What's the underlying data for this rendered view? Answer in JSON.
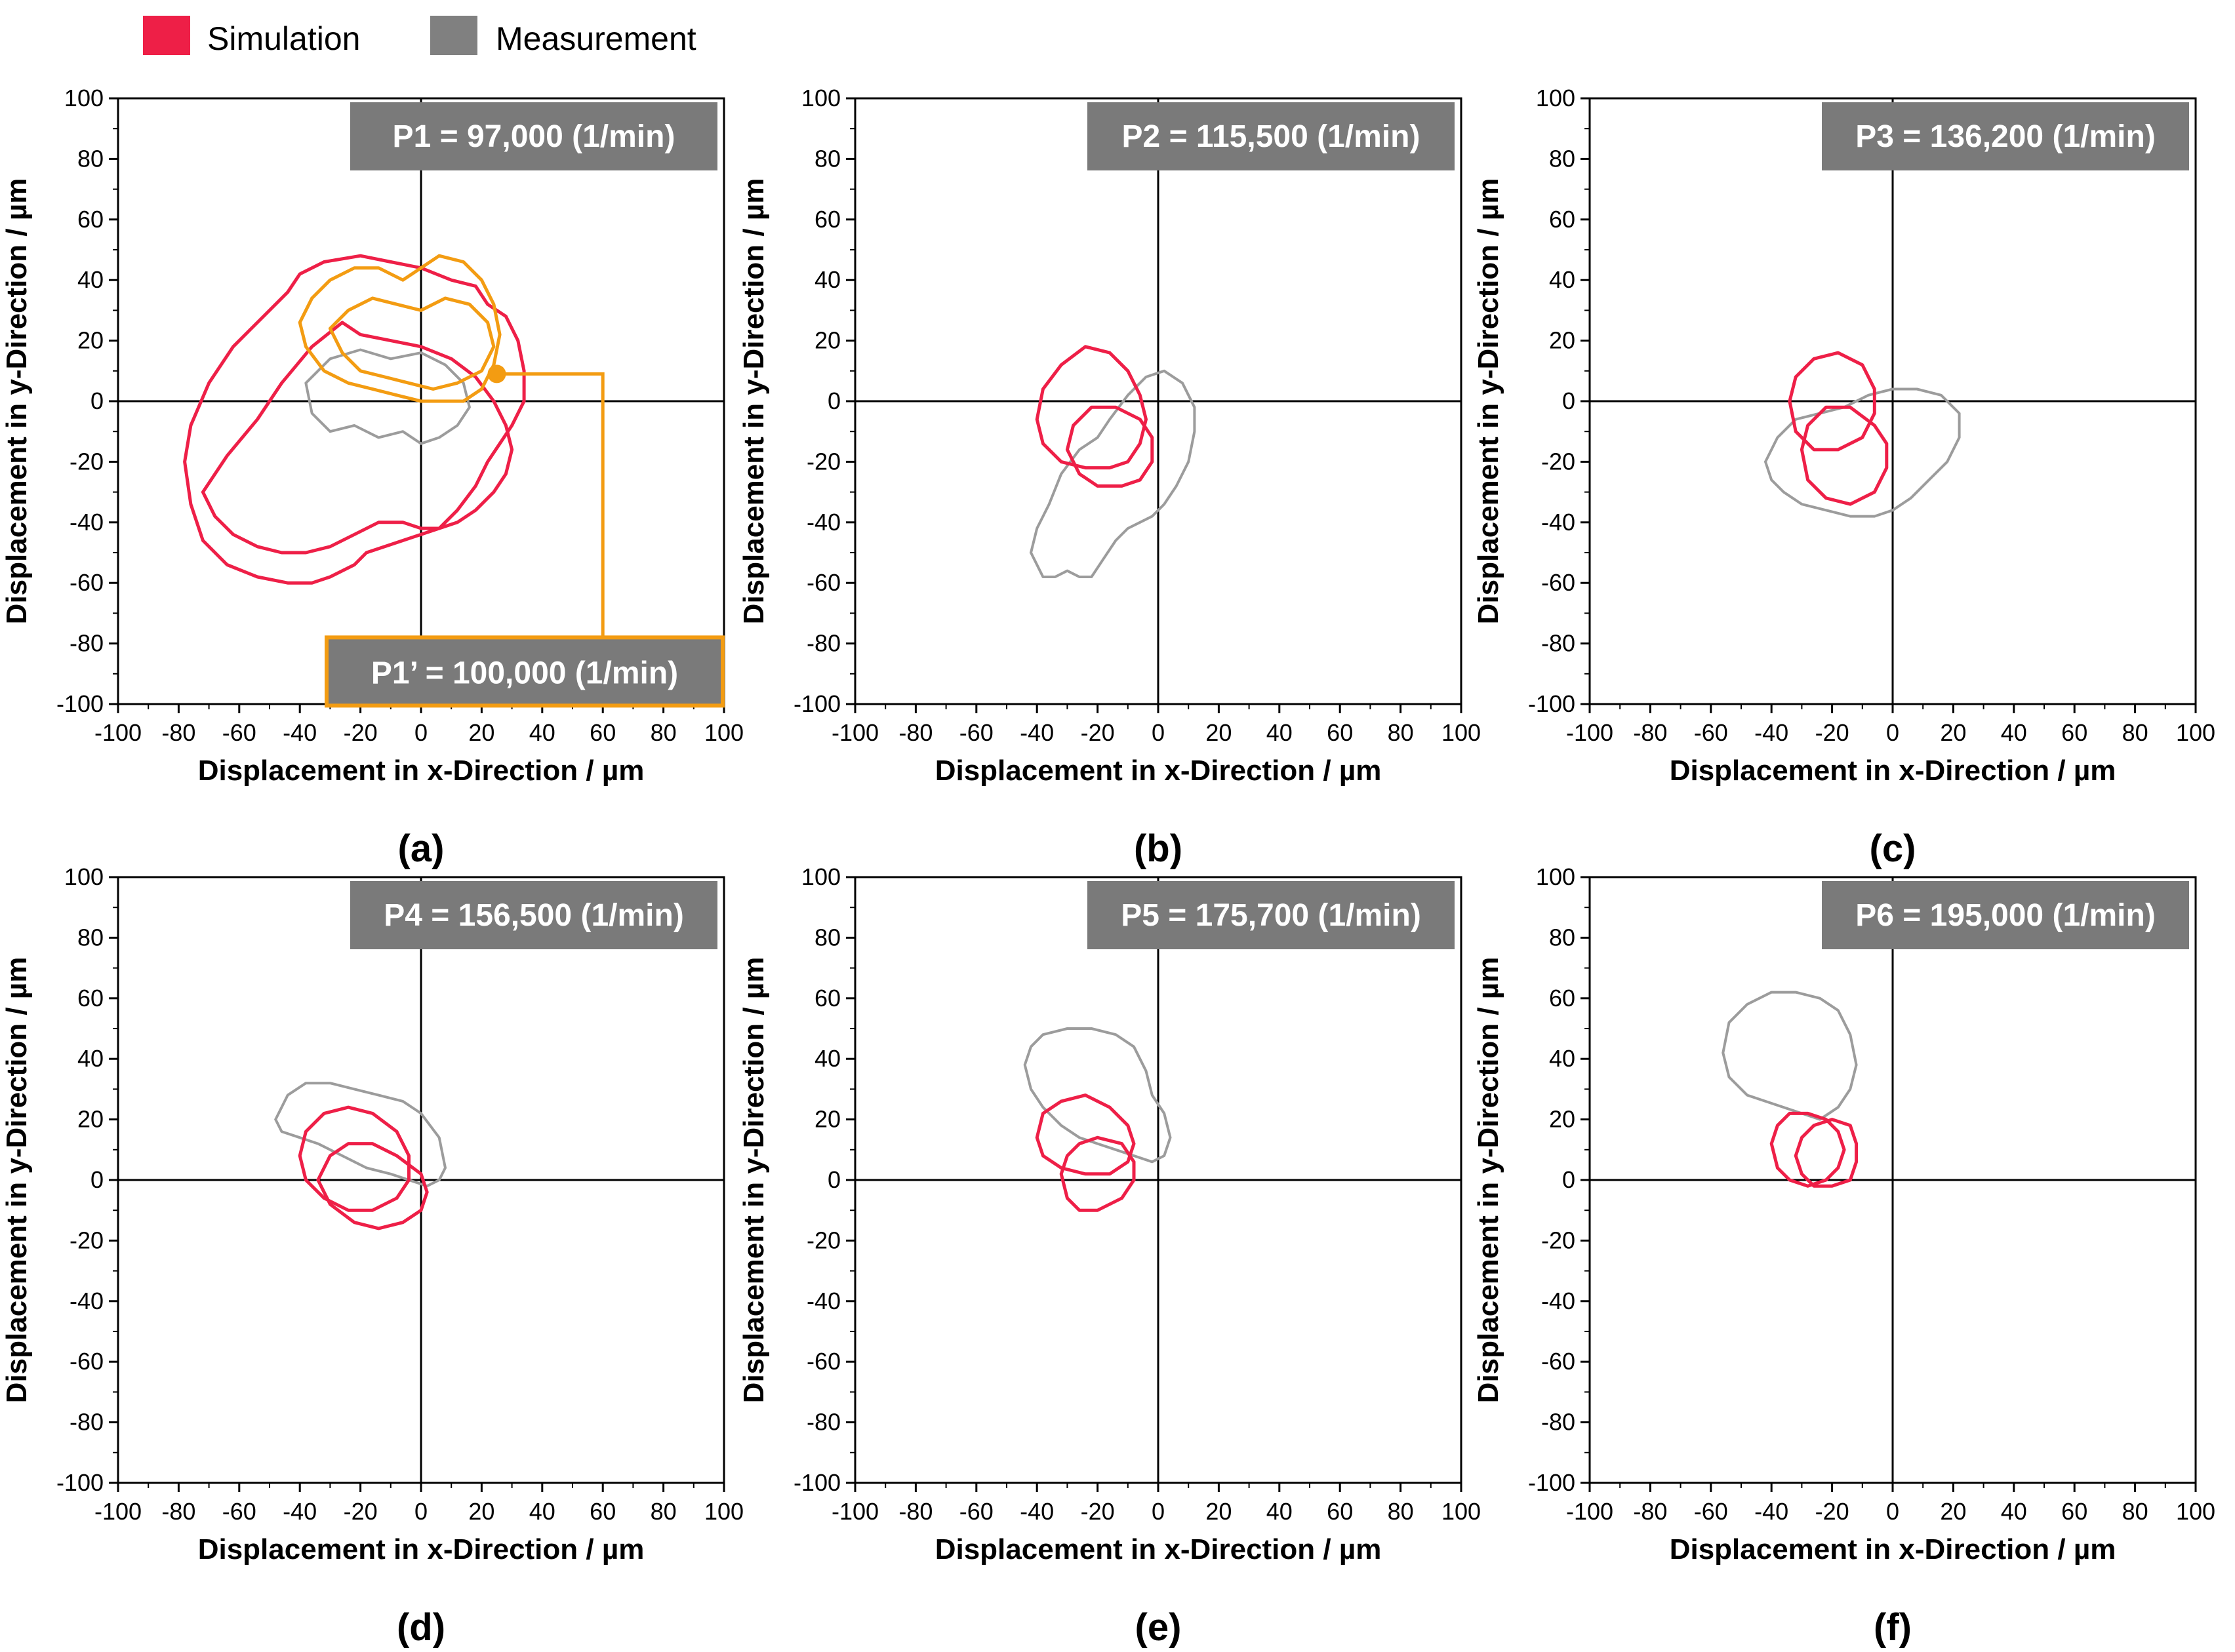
{
  "legend": {
    "items": [
      {
        "label": "Simulation",
        "color": "#ee1f47"
      },
      {
        "label": "Measurement",
        "color": "#808080"
      }
    ]
  },
  "colors": {
    "simulation": "#ee1f47",
    "measurement": "#9c9c9c",
    "p1prime": "#f39c12",
    "annotation_bg": "#7a7a7a"
  },
  "chart_data": [
    {
      "type": "scatter",
      "panel": "(a)",
      "title": "P1 = 97,000 (1/min)",
      "extra_title": "P1’ = 100,000 (1/min)",
      "xlabel": "Displacement in x-Direction / µm",
      "ylabel": "Displacement in y-Direction / µm",
      "xlim": [
        -100,
        100
      ],
      "ylim": [
        -100,
        100
      ],
      "xticks": [
        -100,
        -80,
        -60,
        -40,
        -20,
        0,
        20,
        40,
        60,
        80,
        100
      ],
      "yticks": [
        -100,
        -80,
        -60,
        -40,
        -20,
        0,
        20,
        40,
        60,
        80,
        100
      ],
      "series": [
        {
          "name": "Measurement",
          "x": [
            -38,
            -30,
            -20,
            -10,
            0,
            8,
            14,
            16,
            12,
            6,
            0,
            -6,
            -14,
            -22,
            -30,
            -36,
            -38
          ],
          "y": [
            6,
            14,
            17,
            14,
            16,
            12,
            6,
            -2,
            -8,
            -12,
            -14,
            -10,
            -12,
            -8,
            -10,
            -4,
            6
          ]
        },
        {
          "name": "Simulation",
          "x": [
            -78,
            -76,
            -70,
            -62,
            -52,
            -44,
            -40,
            -32,
            -20,
            -10,
            0,
            10,
            18,
            22,
            28,
            32,
            34,
            34,
            30,
            26,
            22,
            18,
            12,
            6,
            0,
            -6,
            -12,
            -18,
            -22,
            -26,
            -30,
            -36,
            -44,
            -54,
            -64,
            -72,
            -76,
            -78
          ],
          "y": [
            -20,
            -8,
            6,
            18,
            28,
            36,
            42,
            46,
            48,
            46,
            44,
            40,
            38,
            32,
            28,
            20,
            10,
            0,
            -8,
            -14,
            -20,
            -28,
            -36,
            -42,
            -44,
            -46,
            -48,
            -50,
            -54,
            -56,
            -58,
            -60,
            -60,
            -58,
            -54,
            -46,
            -34,
            -20
          ]
        },
        {
          "name": "Simulation",
          "x": [
            -72,
            -64,
            -54,
            -46,
            -36,
            -26,
            -20,
            -10,
            0,
            10,
            18,
            24,
            28,
            30,
            28,
            24,
            18,
            12,
            6,
            0,
            -6,
            -14,
            -22,
            -30,
            -38,
            -46,
            -54,
            -62,
            -68,
            -72
          ],
          "y": [
            -30,
            -18,
            -6,
            6,
            18,
            26,
            22,
            20,
            18,
            14,
            8,
            0,
            -8,
            -16,
            -24,
            -30,
            -36,
            -40,
            -42,
            -42,
            -40,
            -40,
            -44,
            -48,
            -50,
            -50,
            -48,
            -44,
            -38,
            -30
          ]
        },
        {
          "name": "P1’",
          "x": [
            -40,
            -36,
            -30,
            -22,
            -14,
            -6,
            0,
            6,
            14,
            20,
            24,
            26,
            24,
            20,
            14,
            6,
            0,
            -8,
            -16,
            -24,
            -32,
            -38,
            -40
          ],
          "y": [
            26,
            34,
            40,
            44,
            44,
            40,
            44,
            48,
            46,
            40,
            32,
            22,
            12,
            4,
            0,
            0,
            0,
            2,
            4,
            6,
            10,
            18,
            26
          ]
        },
        {
          "name": "P1’",
          "x": [
            -30,
            -24,
            -16,
            -8,
            0,
            8,
            16,
            22,
            24,
            20,
            12,
            4,
            -4,
            -12,
            -20,
            -26,
            -30
          ],
          "y": [
            24,
            30,
            34,
            32,
            30,
            34,
            32,
            26,
            18,
            10,
            6,
            4,
            6,
            8,
            10,
            16,
            24
          ]
        }
      ]
    },
    {
      "type": "scatter",
      "panel": "(b)",
      "title": "P2 = 115,500 (1/min)",
      "xlabel": "Displacement in x-Direction / µm",
      "ylabel": "Displacement in y-Direction / µm",
      "xlim": [
        -100,
        100
      ],
      "ylim": [
        -100,
        100
      ],
      "xticks": [
        -100,
        -80,
        -60,
        -40,
        -20,
        0,
        20,
        40,
        60,
        80,
        100
      ],
      "yticks": [
        -100,
        -80,
        -60,
        -40,
        -20,
        0,
        20,
        40,
        60,
        80,
        100
      ],
      "series": [
        {
          "name": "Measurement",
          "x": [
            -42,
            -40,
            -36,
            -32,
            -26,
            -20,
            -16,
            -10,
            -4,
            2,
            8,
            12,
            12,
            10,
            6,
            2,
            -2,
            -6,
            -10,
            -14,
            -18,
            -22,
            -26,
            -30,
            -34,
            -38,
            -42
          ],
          "y": [
            -50,
            -42,
            -34,
            -24,
            -16,
            -12,
            -6,
            2,
            8,
            10,
            6,
            -2,
            -10,
            -20,
            -28,
            -34,
            -38,
            -40,
            -42,
            -46,
            -52,
            -58,
            -58,
            -56,
            -58,
            -58,
            -50
          ]
        },
        {
          "name": "Simulation",
          "x": [
            -40,
            -38,
            -32,
            -24,
            -16,
            -10,
            -6,
            -4,
            -6,
            -10,
            -16,
            -24,
            -32,
            -38,
            -40
          ],
          "y": [
            -6,
            4,
            12,
            18,
            16,
            10,
            2,
            -6,
            -14,
            -20,
            -22,
            -22,
            -20,
            -14,
            -6
          ]
        },
        {
          "name": "Simulation",
          "x": [
            -30,
            -28,
            -22,
            -14,
            -6,
            -2,
            -2,
            -6,
            -12,
            -20,
            -26,
            -30
          ],
          "y": [
            -16,
            -8,
            -2,
            -2,
            -6,
            -12,
            -20,
            -26,
            -28,
            -28,
            -24,
            -16
          ]
        }
      ]
    },
    {
      "type": "scatter",
      "panel": "(c)",
      "title": "P3 = 136,200 (1/min)",
      "xlabel": "Displacement in x-Direction / µm",
      "ylabel": "Displacement in y-Direction / µm",
      "xlim": [
        -100,
        100
      ],
      "ylim": [
        -100,
        100
      ],
      "xticks": [
        -100,
        -80,
        -60,
        -40,
        -20,
        0,
        20,
        40,
        60,
        80,
        100
      ],
      "yticks": [
        -100,
        -80,
        -60,
        -40,
        -20,
        0,
        20,
        40,
        60,
        80,
        100
      ],
      "series": [
        {
          "name": "Measurement",
          "x": [
            -42,
            -38,
            -32,
            -24,
            -16,
            -8,
            0,
            8,
            16,
            22,
            22,
            18,
            12,
            6,
            0,
            -6,
            -14,
            -22,
            -30,
            -36,
            -40,
            -42
          ],
          "y": [
            -20,
            -12,
            -6,
            -4,
            -2,
            2,
            4,
            4,
            2,
            -4,
            -12,
            -20,
            -26,
            -32,
            -36,
            -38,
            -38,
            -36,
            -34,
            -30,
            -26,
            -20
          ]
        },
        {
          "name": "Simulation",
          "x": [
            -34,
            -32,
            -26,
            -18,
            -10,
            -6,
            -6,
            -10,
            -18,
            -26,
            -32,
            -34
          ],
          "y": [
            0,
            8,
            14,
            16,
            12,
            4,
            -4,
            -12,
            -16,
            -16,
            -10,
            0
          ]
        },
        {
          "name": "Simulation",
          "x": [
            -30,
            -28,
            -22,
            -14,
            -6,
            -2,
            -2,
            -6,
            -14,
            -22,
            -28,
            -30
          ],
          "y": [
            -16,
            -8,
            -2,
            -2,
            -8,
            -14,
            -22,
            -30,
            -34,
            -32,
            -26,
            -16
          ]
        }
      ]
    },
    {
      "type": "scatter",
      "panel": "(d)",
      "title": "P4 = 156,500 (1/min)",
      "xlabel": "Displacement in x-Direction / µm",
      "ylabel": "Displacement in y-Direction / µm",
      "xlim": [
        -100,
        100
      ],
      "ylim": [
        -100,
        100
      ],
      "xticks": [
        -100,
        -80,
        -60,
        -40,
        -20,
        0,
        20,
        40,
        60,
        80,
        100
      ],
      "yticks": [
        -100,
        -80,
        -60,
        -40,
        -20,
        0,
        20,
        40,
        60,
        80,
        100
      ],
      "series": [
        {
          "name": "Measurement",
          "x": [
            -48,
            -44,
            -38,
            -30,
            -22,
            -14,
            -6,
            0,
            6,
            8,
            6,
            2,
            -4,
            -10,
            -18,
            -26,
            -34,
            -40,
            -46,
            -48
          ],
          "y": [
            20,
            28,
            32,
            32,
            30,
            28,
            26,
            22,
            14,
            4,
            0,
            -2,
            0,
            2,
            4,
            8,
            12,
            14,
            16,
            20
          ]
        },
        {
          "name": "Simulation",
          "x": [
            -40,
            -38,
            -32,
            -24,
            -16,
            -8,
            -4,
            -4,
            -8,
            -16,
            -24,
            -32,
            -38,
            -40
          ],
          "y": [
            8,
            16,
            22,
            24,
            22,
            16,
            8,
            0,
            -6,
            -10,
            -10,
            -6,
            0,
            8
          ]
        },
        {
          "name": "Simulation",
          "x": [
            -34,
            -30,
            -24,
            -16,
            -8,
            0,
            2,
            0,
            -6,
            -14,
            -22,
            -30,
            -34
          ],
          "y": [
            0,
            8,
            12,
            12,
            8,
            2,
            -4,
            -10,
            -14,
            -16,
            -14,
            -8,
            0
          ]
        }
      ]
    },
    {
      "type": "scatter",
      "panel": "(e)",
      "title": "P5 = 175,700 (1/min)",
      "xlabel": "Displacement in x-Direction / µm",
      "ylabel": "Displacement in y-Direction / µm",
      "xlim": [
        -100,
        100
      ],
      "ylim": [
        -100,
        100
      ],
      "xticks": [
        -100,
        -80,
        -60,
        -40,
        -20,
        0,
        20,
        40,
        60,
        80,
        100
      ],
      "yticks": [
        -100,
        -80,
        -60,
        -40,
        -20,
        0,
        20,
        40,
        60,
        80,
        100
      ],
      "series": [
        {
          "name": "Measurement",
          "x": [
            -44,
            -42,
            -38,
            -30,
            -22,
            -14,
            -8,
            -4,
            -2,
            2,
            4,
            2,
            -2,
            -8,
            -14,
            -20,
            -26,
            -32,
            -38,
            -42,
            -44
          ],
          "y": [
            38,
            44,
            48,
            50,
            50,
            48,
            44,
            36,
            28,
            22,
            14,
            8,
            6,
            8,
            10,
            12,
            14,
            18,
            24,
            30,
            38
          ]
        },
        {
          "name": "Simulation",
          "x": [
            -40,
            -38,
            -32,
            -24,
            -16,
            -10,
            -8,
            -10,
            -16,
            -24,
            -32,
            -38,
            -40
          ],
          "y": [
            14,
            22,
            26,
            28,
            24,
            18,
            12,
            6,
            2,
            2,
            4,
            8,
            14
          ]
        },
        {
          "name": "Simulation",
          "x": [
            -32,
            -30,
            -26,
            -20,
            -12,
            -8,
            -8,
            -12,
            -20,
            -26,
            -30,
            -32
          ],
          "y": [
            2,
            8,
            12,
            14,
            12,
            6,
            0,
            -6,
            -10,
            -10,
            -6,
            2
          ]
        }
      ]
    },
    {
      "type": "scatter",
      "panel": "(f)",
      "title": "P6 = 195,000 (1/min)",
      "xlabel": "Displacement in x-Direction / µm",
      "ylabel": "Displacement in y-Direction / µm",
      "xlim": [
        -100,
        100
      ],
      "ylim": [
        -100,
        100
      ],
      "xticks": [
        -100,
        -80,
        -60,
        -40,
        -20,
        0,
        20,
        40,
        60,
        80,
        100
      ],
      "yticks": [
        -100,
        -80,
        -60,
        -40,
        -20,
        0,
        20,
        40,
        60,
        80,
        100
      ],
      "series": [
        {
          "name": "Measurement",
          "x": [
            -56,
            -54,
            -48,
            -40,
            -32,
            -24,
            -18,
            -14,
            -12,
            -14,
            -18,
            -24,
            -30,
            -36,
            -42,
            -48,
            -54,
            -56
          ],
          "y": [
            42,
            52,
            58,
            62,
            62,
            60,
            56,
            48,
            38,
            30,
            24,
            20,
            22,
            24,
            26,
            28,
            34,
            42
          ]
        },
        {
          "name": "Simulation",
          "x": [
            -40,
            -38,
            -34,
            -28,
            -22,
            -18,
            -16,
            -18,
            -22,
            -28,
            -34,
            -38,
            -40
          ],
          "y": [
            12,
            18,
            22,
            22,
            20,
            16,
            10,
            4,
            0,
            -2,
            0,
            4,
            12
          ]
        },
        {
          "name": "Simulation",
          "x": [
            -32,
            -30,
            -26,
            -20,
            -14,
            -12,
            -12,
            -14,
            -20,
            -26,
            -30,
            -32
          ],
          "y": [
            8,
            14,
            18,
            20,
            18,
            12,
            6,
            0,
            -2,
            -2,
            2,
            8
          ]
        }
      ]
    }
  ]
}
